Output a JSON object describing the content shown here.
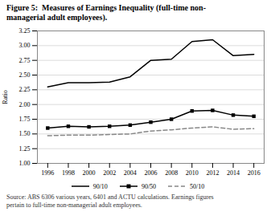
{
  "chart_data": {
    "type": "line",
    "title": "Figure 5:  Measures of Earnings Inequality (full-time non-\nmanagerial adult employees).",
    "source": "Source: ABS 6306 various years, 6401 and ACTU calculations. Earnings figures\npertain to full-time non-managerial adult employees.",
    "ylabel": "Ratio",
    "x": [
      1996,
      1998,
      2000,
      2002,
      2004,
      2006,
      2008,
      2010,
      2012,
      2014,
      2016
    ],
    "series": [
      {
        "name": "90/10",
        "color": "#000000",
        "line_style": "solid",
        "marker": "none",
        "values": [
          2.3,
          2.37,
          2.37,
          2.38,
          2.47,
          2.75,
          2.77,
          3.07,
          3.1,
          2.83,
          2.85
        ]
      },
      {
        "name": "90/50",
        "color": "#000000",
        "line_style": "solid",
        "marker": "square",
        "values": [
          1.6,
          1.63,
          1.62,
          1.63,
          1.65,
          1.7,
          1.75,
          1.89,
          1.9,
          1.82,
          1.8
        ]
      },
      {
        "name": "50/10",
        "color": "#888888",
        "line_style": "dashed",
        "marker": "none",
        "values": [
          1.47,
          1.48,
          1.48,
          1.49,
          1.5,
          1.55,
          1.57,
          1.6,
          1.62,
          1.58,
          1.59
        ]
      }
    ],
    "xlim": [
      1995,
      2017
    ],
    "xticks": [
      1996,
      1998,
      2000,
      2002,
      2004,
      2006,
      2008,
      2010,
      2012,
      2014,
      2016
    ],
    "ylim": [
      1.0,
      3.25
    ],
    "yticks": [
      {
        "value": 1,
        "label": "1.00"
      },
      1.25,
      {
        "value": 1.5,
        "label": "1.50"
      },
      1.75,
      {
        "value": 2,
        "label": "2.00"
      },
      2.25,
      {
        "value": 2.5,
        "label": "2.50"
      },
      2.75,
      {
        "value": 3,
        "label": "3.00"
      },
      3.25
    ],
    "grid": true,
    "legend": "bottom"
  }
}
